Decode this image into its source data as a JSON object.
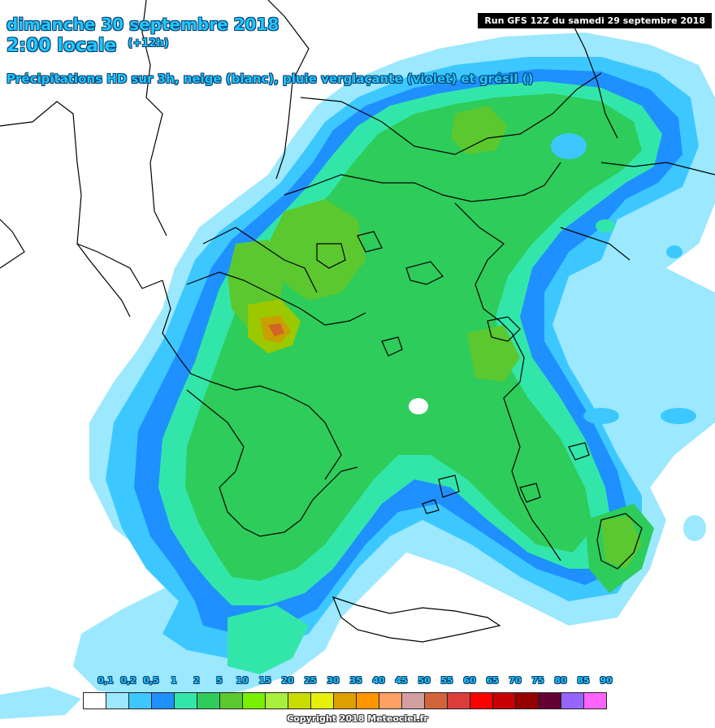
{
  "header": {
    "date_line": "dimanche 30 septembre 2018",
    "time_line": "2:00 locale",
    "lead_time": "(+12h)",
    "subtitle": "Précipitations HD sur 3h, neige (blanc), pluie verglaçante (violet) et grésil ()",
    "run_info": "Run GFS 12Z du samedi 29 septembre 2018"
  },
  "legend": {
    "labels": [
      "0,1",
      "0,2",
      "0,5",
      "1",
      "2",
      "5",
      "10",
      "15",
      "20",
      "25",
      "30",
      "35",
      "40",
      "45",
      "50",
      "55",
      "60",
      "65",
      "70",
      "75",
      "80",
      "85",
      "90"
    ],
    "colors": [
      "#ffffff",
      "#9be8ff",
      "#3cc8ff",
      "#1e90ff",
      "#32e6aa",
      "#2ecc5a",
      "#5cc830",
      "#78f000",
      "#a8f03c",
      "#c8dc00",
      "#e6f00a",
      "#dca000",
      "#ff9600",
      "#ffa064",
      "#d2a0a0",
      "#d2643c",
      "#dc3c3c",
      "#ff0000",
      "#c80000",
      "#960000",
      "#640032",
      "#9664ff",
      "#ff64ff"
    ]
  },
  "map": {
    "colors": {
      "land_bg": "#ffffff",
      "border": "#000000",
      "precip_01": "#9be8ff",
      "precip_02": "#3cc8ff",
      "precip_05": "#1e90ff",
      "precip_1": "#32e6aa",
      "precip_2": "#2ecc5a",
      "precip_5": "#5cc830",
      "precip_10": "#9cc800",
      "precip_20": "#c8a000",
      "precip_30": "#d26428"
    }
  },
  "footer": {
    "copyright": "Copyright 2018 Meteociel.fr"
  }
}
